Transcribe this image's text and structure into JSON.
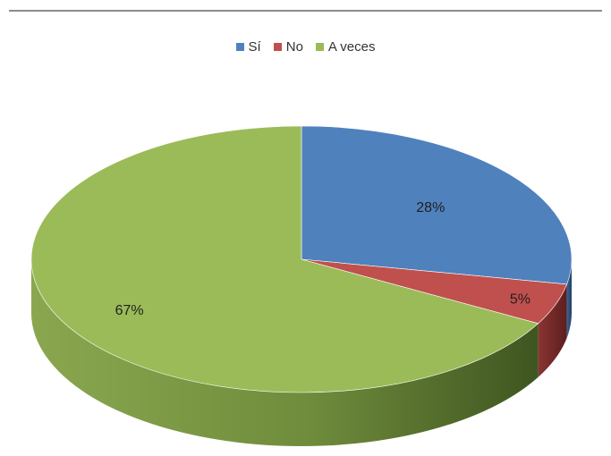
{
  "chart_data": {
    "type": "pie",
    "style": "3d",
    "legend_position": "top",
    "categories": [
      "Sí",
      "No",
      "A veces"
    ],
    "values": [
      28,
      5,
      67
    ],
    "labels": [
      "28%",
      "5%",
      "67%"
    ],
    "colors": [
      "#4f81bd",
      "#c0504d",
      "#9bbb59"
    ],
    "side_colors": [
      "#2c4f7c",
      "#772b29",
      "#4f6a2a"
    ]
  }
}
